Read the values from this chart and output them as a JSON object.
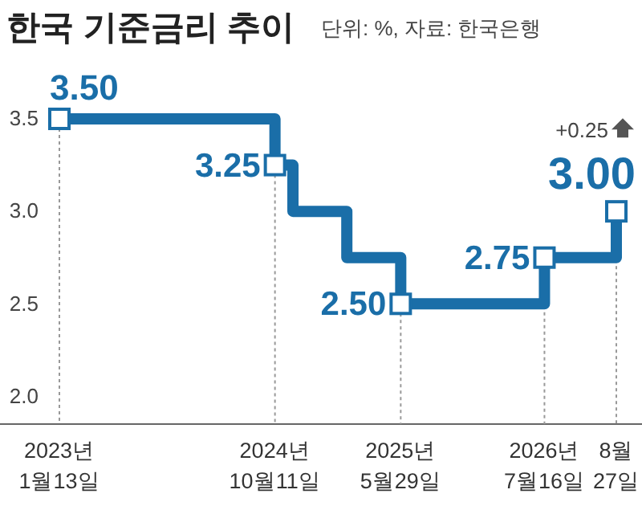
{
  "chart_data": {
    "type": "step",
    "title": "한국 기준금리 추이",
    "subtitle": "단위: %, 자료: 한국은행",
    "categories": [
      "2023년\n1월13일",
      null,
      null,
      null,
      null,
      null,
      null,
      null,
      null,
      null,
      null,
      null,
      "2024년\n10월11일",
      null,
      null,
      null,
      null,
      null,
      null,
      "2025년\n5월29일",
      null,
      null,
      null,
      null,
      null,
      null,
      null,
      "2026년\n7월16일",
      null,
      null,
      null,
      "8월\n27일"
    ],
    "series": [
      {
        "color": "#1a6ea8",
        "values": [
          3.5,
          3.5,
          3.5,
          3.5,
          3.5,
          3.5,
          3.5,
          3.5,
          3.5,
          3.5,
          3.5,
          3.5,
          3.25,
          3.0,
          3.0,
          3.0,
          2.75,
          2.75,
          2.75,
          2.5,
          2.5,
          2.5,
          2.5,
          2.5,
          2.5,
          2.5,
          2.5,
          2.75,
          2.75,
          2.75,
          2.75,
          3.0
        ]
      },
      {
        "type": "scatter",
        "marker": "square",
        "color": "#1a6ea8",
        "values": [
          3.5,
          null,
          null,
          null,
          null,
          null,
          null,
          null,
          null,
          null,
          null,
          null,
          3.25,
          null,
          null,
          null,
          null,
          null,
          null,
          2.5,
          null,
          null,
          null,
          null,
          null,
          null,
          null,
          2.75,
          null,
          null,
          null,
          3.0
        ],
        "value_labels": [
          "3.50",
          null,
          null,
          null,
          null,
          null,
          null,
          null,
          null,
          null,
          null,
          null,
          "3.25",
          null,
          null,
          null,
          null,
          null,
          null,
          "2.50",
          null,
          null,
          null,
          null,
          null,
          null,
          null,
          "2.75",
          null,
          null,
          null,
          "3.00"
        ]
      }
    ],
    "ylim": [
      1.85,
      3.5
    ],
    "yticks": [
      {
        "value": 2.0,
        "label": "2.0"
      },
      {
        "value": 2.5,
        "label": "2.5"
      },
      {
        "value": 3.0,
        "label": "3.0"
      },
      {
        "value": 3.5,
        "label": "3.5"
      }
    ],
    "grid": "x",
    "annotations": [
      "+0.25"
    ]
  }
}
